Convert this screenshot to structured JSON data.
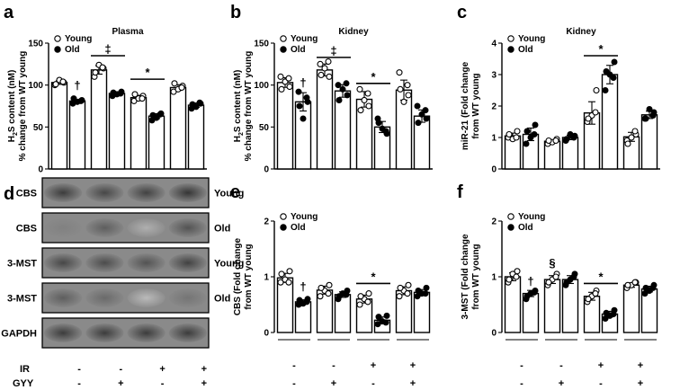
{
  "legend": {
    "young": "Young",
    "old": "Old"
  },
  "conditions": {
    "ir": {
      "label": "IR",
      "values": [
        "-",
        "-",
        "+",
        "+"
      ]
    },
    "gyy": {
      "label": "GYY",
      "values": [
        "-",
        "+",
        "-",
        "+"
      ]
    }
  },
  "blot": {
    "panel_label": "d",
    "rows": [
      {
        "left": "CBS",
        "right": "Young",
        "band_intensity": [
          0.85,
          0.8,
          0.82,
          0.88
        ]
      },
      {
        "left": "CBS",
        "right": "Old",
        "band_intensity": [
          0.55,
          0.7,
          0.35,
          0.75
        ]
      },
      {
        "left": "3-MST",
        "right": "Young",
        "band_intensity": [
          0.8,
          0.78,
          0.75,
          0.82
        ]
      },
      {
        "left": "3-MST",
        "right": "Old",
        "band_intensity": [
          0.7,
          0.65,
          0.3,
          0.6
        ]
      },
      {
        "left": "GAPDH",
        "right": "",
        "band_intensity": [
          0.85,
          0.85,
          0.85,
          0.85
        ]
      }
    ]
  },
  "chart_data": [
    {
      "panel_label": "a",
      "type": "bar",
      "title": "Plasma",
      "ylabel": [
        "H",
        "2",
        "S content (nM)",
        "% change from WT young"
      ],
      "ylim": [
        0,
        150
      ],
      "yticks": [
        0,
        50,
        100,
        150
      ],
      "pairs": [
        [
          103,
          81
        ],
        [
          118,
          90
        ],
        [
          85,
          63
        ],
        [
          97,
          76
        ]
      ],
      "points": [
        {
          "young": [
            100,
            103,
            106,
            101,
            104
          ],
          "old": [
            78,
            82,
            80,
            84,
            81
          ]
        },
        {
          "young": [
            110,
            120,
            124,
            115,
            121
          ],
          "old": [
            87,
            92,
            89,
            91,
            90
          ]
        },
        {
          "young": [
            81,
            87,
            84,
            89,
            84
          ],
          "old": [
            58,
            66,
            61,
            64,
            65
          ]
        },
        {
          "young": [
            92,
            99,
            95,
            102,
            97
          ],
          "old": [
            72,
            78,
            74,
            77,
            79
          ]
        }
      ],
      "sig": [
        {
          "symbol": "†",
          "pair": 0,
          "series": "old",
          "value": 95
        },
        {
          "symbol": "‡",
          "pair": 1,
          "series": "both",
          "value": 135
        },
        {
          "symbol": "*",
          "pair": 2,
          "series": "both",
          "value": 107
        }
      ],
      "condition_rows": false
    },
    {
      "panel_label": "b",
      "type": "bar",
      "title": "Kidney",
      "ylabel": [
        "H",
        "2",
        "S content (nM)",
        "% change from WT young"
      ],
      "ylim": [
        0,
        150
      ],
      "yticks": [
        0,
        50,
        100,
        150
      ],
      "pairs": [
        [
          103,
          80
        ],
        [
          118,
          93
        ],
        [
          83,
          50
        ],
        [
          94,
          63
        ]
      ],
      "points": [
        {
          "young": [
            110,
            98,
            104,
            95,
            108
          ],
          "old": [
            92,
            80,
            60,
            75,
            85
          ]
        },
        {
          "young": [
            125,
            110,
            120,
            112,
            128
          ],
          "old": [
            100,
            88,
            95,
            82,
            102
          ]
        },
        {
          "young": [
            95,
            75,
            82,
            70,
            90
          ],
          "old": [
            60,
            42,
            48,
            55,
            45
          ]
        },
        {
          "young": [
            115,
            88,
            80,
            95,
            100
          ],
          "old": [
            75,
            60,
            65,
            55,
            70
          ]
        }
      ],
      "sig": [
        {
          "symbol": "†",
          "pair": 0,
          "series": "old",
          "value": 98
        },
        {
          "symbol": "‡",
          "pair": 1,
          "series": "both",
          "value": 133
        },
        {
          "symbol": "*",
          "pair": 2,
          "series": "both",
          "value": 102
        }
      ],
      "condition_rows": false
    },
    {
      "panel_label": "c",
      "type": "bar",
      "title": "Kidney",
      "ylabel": [
        "miR-21 (Fold change",
        "from WT young"
      ],
      "ylim": [
        0,
        4
      ],
      "yticks": [
        0,
        1,
        2,
        3,
        4
      ],
      "pairs": [
        [
          1.05,
          1.1
        ],
        [
          0.88,
          1.0
        ],
        [
          1.78,
          3.0
        ],
        [
          1.02,
          1.72
        ]
      ],
      "points": [
        {
          "young": [
            1.0,
            1.2,
            0.95,
            1.1,
            1.0
          ],
          "old": [
            0.8,
            1.4,
            1.0,
            1.2,
            1.1
          ]
        },
        {
          "young": [
            0.8,
            0.95,
            0.85,
            0.9,
            0.9
          ],
          "old": [
            0.9,
            1.05,
            1.1,
            0.95,
            1.0
          ]
        },
        {
          "young": [
            1.5,
            2.5,
            1.7,
            1.6,
            1.8
          ],
          "old": [
            2.5,
            3.4,
            3.0,
            3.1,
            2.9
          ]
        },
        {
          "young": [
            0.9,
            1.1,
            1.0,
            0.8,
            1.2
          ],
          "old": [
            1.6,
            1.8,
            1.9,
            1.6,
            1.7
          ]
        }
      ],
      "sig": [
        {
          "symbol": "*",
          "pair": 2,
          "series": "both",
          "value": 3.6
        }
      ],
      "condition_rows": false
    },
    {
      "panel_label": "e",
      "type": "bar",
      "title": "",
      "ylabel": [
        "CBS (Fold change",
        "from WT young"
      ],
      "ylim": [
        0,
        2
      ],
      "yticks": [
        0,
        1,
        2
      ],
      "pairs": [
        [
          0.98,
          0.55
        ],
        [
          0.76,
          0.68
        ],
        [
          0.6,
          0.22
        ],
        [
          0.75,
          0.72
        ]
      ],
      "points": [
        {
          "young": [
            0.9,
            1.1,
            0.95,
            1.05,
            0.9
          ],
          "old": [
            0.5,
            0.6,
            0.52,
            0.58,
            0.55
          ]
        },
        {
          "young": [
            0.65,
            0.85,
            0.75,
            0.8,
            0.7
          ],
          "old": [
            0.6,
            0.75,
            0.7,
            0.65,
            0.68
          ]
        },
        {
          "young": [
            0.5,
            0.7,
            0.6,
            0.65,
            0.55
          ],
          "old": [
            0.15,
            0.3,
            0.2,
            0.28,
            0.18
          ]
        },
        {
          "young": [
            0.65,
            0.85,
            0.75,
            0.8,
            0.7
          ],
          "old": [
            0.65,
            0.8,
            0.7,
            0.75,
            0.7
          ]
        }
      ],
      "sig": [
        {
          "symbol": "†",
          "pair": 0,
          "series": "old",
          "value": 0.75
        },
        {
          "symbol": "*",
          "pair": 2,
          "series": "both",
          "value": 0.88
        }
      ],
      "condition_rows": true
    },
    {
      "panel_label": "f",
      "type": "bar",
      "title": "",
      "ylabel": [
        "3-MST (Fold change",
        "from WT young"
      ],
      "ylim": [
        0,
        2
      ],
      "yticks": [
        0,
        1,
        2
      ],
      "pairs": [
        [
          1.0,
          0.7
        ],
        [
          0.95,
          0.95
        ],
        [
          0.65,
          0.33
        ],
        [
          0.85,
          0.78
        ]
      ],
      "points": [
        {
          "young": [
            0.9,
            1.1,
            1.05,
            0.95,
            1.0
          ],
          "old": [
            0.6,
            0.75,
            0.7,
            0.65,
            0.72
          ]
        },
        {
          "young": [
            0.85,
            1.05,
            0.95,
            0.9,
            1.0
          ],
          "old": [
            0.85,
            1.05,
            0.95,
            0.9,
            1.0
          ]
        },
        {
          "young": [
            0.55,
            0.75,
            0.65,
            0.6,
            0.7
          ],
          "old": [
            0.25,
            0.4,
            0.3,
            0.35,
            0.33
          ]
        },
        {
          "young": [
            0.8,
            0.9,
            0.85,
            0.85,
            0.9
          ],
          "old": [
            0.7,
            0.85,
            0.75,
            0.8,
            0.8
          ]
        }
      ],
      "sig": [
        {
          "symbol": "†",
          "pair": 0,
          "series": "old",
          "value": 0.85
        },
        {
          "symbol": "§",
          "pair": 1,
          "series": "young",
          "value": 1.18
        },
        {
          "symbol": "*",
          "pair": 2,
          "series": "both",
          "value": 0.88
        }
      ],
      "condition_rows": true
    }
  ]
}
